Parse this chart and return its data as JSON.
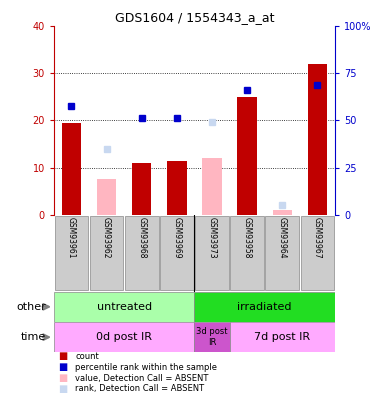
{
  "title": "GDS1604 / 1554343_a_at",
  "samples": [
    "GSM93961",
    "GSM93962",
    "GSM93968",
    "GSM93969",
    "GSM93973",
    "GSM93958",
    "GSM93964",
    "GSM93967"
  ],
  "count_present": [
    19.5,
    null,
    11.0,
    11.5,
    null,
    25.0,
    null,
    32.0
  ],
  "count_absent": [
    null,
    7.5,
    null,
    null,
    12.0,
    null,
    1.0,
    null
  ],
  "rank_present": [
    57.5,
    null,
    51.5,
    51.5,
    null,
    66.0,
    null,
    69.0
  ],
  "rank_absent": [
    null,
    35.0,
    null,
    null,
    49.0,
    null,
    5.0,
    null
  ],
  "ylim_left": [
    0,
    40
  ],
  "ylim_right": [
    0,
    100
  ],
  "left_ticks": [
    0,
    10,
    20,
    30,
    40
  ],
  "right_ticks": [
    0,
    25,
    50,
    75,
    100
  ],
  "color_count": "#c00000",
  "color_rank": "#0000cc",
  "color_absent_count": "#ffb6c1",
  "color_absent_rank": "#c8d8f0",
  "group_other": [
    {
      "label": "untreated",
      "start": 0,
      "end": 4,
      "color": "#aaffaa"
    },
    {
      "label": "irradiated",
      "start": 4,
      "end": 8,
      "color": "#22dd22"
    }
  ],
  "group_time": [
    {
      "label": "0d post IR",
      "start": 0,
      "end": 4,
      "color": "#ffaaff"
    },
    {
      "label": "3d post\nIR",
      "start": 4,
      "end": 5,
      "color": "#cc55cc"
    },
    {
      "label": "7d post IR",
      "start": 5,
      "end": 8,
      "color": "#ffaaff"
    }
  ],
  "legend_items": [
    {
      "label": "count",
      "color": "#c00000"
    },
    {
      "label": "percentile rank within the sample",
      "color": "#0000cc"
    },
    {
      "label": "value, Detection Call = ABSENT",
      "color": "#ffb6c1"
    },
    {
      "label": "rank, Detection Call = ABSENT",
      "color": "#c8d8f0"
    }
  ],
  "bar_width": 0.55,
  "marker_size": 5
}
